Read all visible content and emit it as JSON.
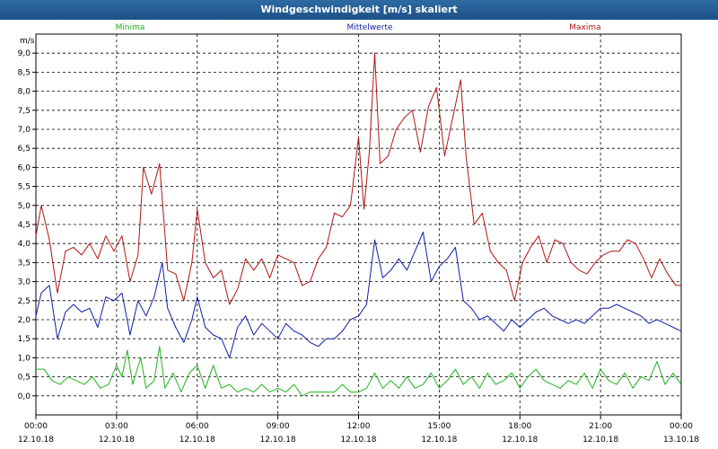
{
  "window": {
    "title": "Windgeschwindigkeit [m/s] skaliert"
  },
  "chart_data": {
    "type": "line",
    "ylabel": "m/s",
    "ylim": [
      -0.5,
      9.5
    ],
    "yticks": [
      "9,0",
      "8,5",
      "8,0",
      "7,5",
      "7,0",
      "6,5",
      "6,0",
      "5,5",
      "5,0",
      "4,5",
      "4,0",
      "3,5",
      "3,0",
      "2,5",
      "2,0",
      "1,5",
      "1,0",
      "0,5",
      "0,0"
    ],
    "ytick_values": [
      9.0,
      8.5,
      8.0,
      7.5,
      7.0,
      6.5,
      6.0,
      5.5,
      5.0,
      4.5,
      4.0,
      3.5,
      3.0,
      2.5,
      2.0,
      1.5,
      1.0,
      0.5,
      0.0
    ],
    "xlim": [
      0,
      24
    ],
    "xticks": [
      {
        "time": "00:00",
        "date": "12.10.18",
        "x": 0
      },
      {
        "time": "03:00",
        "date": "12.10.18",
        "x": 3
      },
      {
        "time": "06:00",
        "date": "12.10.18",
        "x": 6
      },
      {
        "time": "09:00",
        "date": "12.10.18",
        "x": 9
      },
      {
        "time": "12:00",
        "date": "12.10.18",
        "x": 12
      },
      {
        "time": "15:00",
        "date": "12.10.18",
        "x": 15
      },
      {
        "time": "18:00",
        "date": "12.10.18",
        "x": 18
      },
      {
        "time": "21:00",
        "date": "12.10.18",
        "x": 21
      },
      {
        "time": "00:00",
        "date": "13.10.18",
        "x": 24
      }
    ],
    "grid": true,
    "series": [
      {
        "name": "Minima",
        "color": "#1fb31f",
        "legend_position": "left",
        "points": [
          [
            0,
            0.7
          ],
          [
            0.3,
            0.7
          ],
          [
            0.6,
            0.4
          ],
          [
            0.9,
            0.3
          ],
          [
            1.2,
            0.5
          ],
          [
            1.5,
            0.4
          ],
          [
            1.8,
            0.3
          ],
          [
            2.1,
            0.5
          ],
          [
            2.4,
            0.2
          ],
          [
            2.7,
            0.3
          ],
          [
            3,
            0.8
          ],
          [
            3.2,
            0.5
          ],
          [
            3.4,
            1.2
          ],
          [
            3.6,
            0.3
          ],
          [
            3.9,
            1.0
          ],
          [
            4.1,
            0.2
          ],
          [
            4.4,
            0.4
          ],
          [
            4.6,
            1.3
          ],
          [
            4.8,
            0.2
          ],
          [
            5.1,
            0.6
          ],
          [
            5.4,
            0.1
          ],
          [
            5.7,
            0.6
          ],
          [
            6,
            0.8
          ],
          [
            6.3,
            0.2
          ],
          [
            6.6,
            0.8
          ],
          [
            6.9,
            0.2
          ],
          [
            7.2,
            0.3
          ],
          [
            7.5,
            0.1
          ],
          [
            7.8,
            0.2
          ],
          [
            8.1,
            0.1
          ],
          [
            8.4,
            0.3
          ],
          [
            8.7,
            0.1
          ],
          [
            9,
            0.2
          ],
          [
            9.3,
            0.1
          ],
          [
            9.6,
            0.3
          ],
          [
            9.9,
            0.0
          ],
          [
            10.2,
            0.1
          ],
          [
            10.5,
            0.1
          ],
          [
            10.8,
            0.1
          ],
          [
            11.1,
            0.1
          ],
          [
            11.4,
            0.3
          ],
          [
            11.7,
            0.1
          ],
          [
            12,
            0.1
          ],
          [
            12.3,
            0.2
          ],
          [
            12.6,
            0.6
          ],
          [
            12.9,
            0.2
          ],
          [
            13.2,
            0.4
          ],
          [
            13.5,
            0.2
          ],
          [
            13.8,
            0.5
          ],
          [
            14.1,
            0.2
          ],
          [
            14.4,
            0.3
          ],
          [
            14.7,
            0.6
          ],
          [
            15,
            0.2
          ],
          [
            15.3,
            0.4
          ],
          [
            15.6,
            0.7
          ],
          [
            15.9,
            0.3
          ],
          [
            16.2,
            0.5
          ],
          [
            16.5,
            0.2
          ],
          [
            16.8,
            0.6
          ],
          [
            17.1,
            0.3
          ],
          [
            17.4,
            0.4
          ],
          [
            17.7,
            0.6
          ],
          [
            18,
            0.2
          ],
          [
            18.3,
            0.5
          ],
          [
            18.6,
            0.7
          ],
          [
            18.9,
            0.4
          ],
          [
            19.2,
            0.3
          ],
          [
            19.5,
            0.2
          ],
          [
            19.8,
            0.4
          ],
          [
            20.1,
            0.3
          ],
          [
            20.4,
            0.6
          ],
          [
            20.7,
            0.2
          ],
          [
            21,
            0.7
          ],
          [
            21.3,
            0.4
          ],
          [
            21.6,
            0.3
          ],
          [
            21.9,
            0.6
          ],
          [
            22.2,
            0.2
          ],
          [
            22.5,
            0.5
          ],
          [
            22.8,
            0.4
          ],
          [
            23.1,
            0.9
          ],
          [
            23.4,
            0.3
          ],
          [
            23.7,
            0.6
          ],
          [
            24,
            0.3
          ]
        ]
      },
      {
        "name": "Mittelwerte",
        "color": "#0e1ea8",
        "legend_position": "center",
        "points": [
          [
            0,
            2.1
          ],
          [
            0.2,
            2.7
          ],
          [
            0.5,
            2.9
          ],
          [
            0.8,
            1.5
          ],
          [
            1.1,
            2.2
          ],
          [
            1.4,
            2.4
          ],
          [
            1.7,
            2.2
          ],
          [
            2,
            2.3
          ],
          [
            2.3,
            1.8
          ],
          [
            2.6,
            2.6
          ],
          [
            2.9,
            2.5
          ],
          [
            3.2,
            2.7
          ],
          [
            3.5,
            1.6
          ],
          [
            3.8,
            2.5
          ],
          [
            4.1,
            2.1
          ],
          [
            4.4,
            2.6
          ],
          [
            4.7,
            3.5
          ],
          [
            4.9,
            2.3
          ],
          [
            5.2,
            1.8
          ],
          [
            5.5,
            1.4
          ],
          [
            5.8,
            2.0
          ],
          [
            6,
            2.6
          ],
          [
            6.3,
            1.8
          ],
          [
            6.6,
            1.6
          ],
          [
            6.9,
            1.5
          ],
          [
            7.2,
            1.0
          ],
          [
            7.5,
            1.8
          ],
          [
            7.8,
            2.1
          ],
          [
            8.1,
            1.6
          ],
          [
            8.4,
            1.9
          ],
          [
            8.7,
            1.7
          ],
          [
            9,
            1.5
          ],
          [
            9.3,
            1.9
          ],
          [
            9.6,
            1.7
          ],
          [
            9.9,
            1.6
          ],
          [
            10.2,
            1.4
          ],
          [
            10.5,
            1.3
          ],
          [
            10.8,
            1.5
          ],
          [
            11.1,
            1.5
          ],
          [
            11.4,
            1.7
          ],
          [
            11.7,
            2.0
          ],
          [
            12,
            2.1
          ],
          [
            12.3,
            2.4
          ],
          [
            12.6,
            4.1
          ],
          [
            12.9,
            3.1
          ],
          [
            13.2,
            3.3
          ],
          [
            13.5,
            3.6
          ],
          [
            13.8,
            3.3
          ],
          [
            14.1,
            3.8
          ],
          [
            14.4,
            4.3
          ],
          [
            14.7,
            3.0
          ],
          [
            15,
            3.4
          ],
          [
            15.3,
            3.6
          ],
          [
            15.6,
            3.9
          ],
          [
            15.9,
            2.5
          ],
          [
            16.2,
            2.3
          ],
          [
            16.5,
            2.0
          ],
          [
            16.8,
            2.1
          ],
          [
            17.1,
            1.9
          ],
          [
            17.4,
            1.7
          ],
          [
            17.7,
            2.0
          ],
          [
            18,
            1.8
          ],
          [
            18.3,
            2.0
          ],
          [
            18.6,
            2.2
          ],
          [
            18.9,
            2.3
          ],
          [
            19.2,
            2.1
          ],
          [
            19.5,
            2.0
          ],
          [
            19.8,
            1.9
          ],
          [
            20.1,
            2.0
          ],
          [
            20.4,
            1.9
          ],
          [
            20.7,
            2.1
          ],
          [
            21,
            2.3
          ],
          [
            21.3,
            2.3
          ],
          [
            21.6,
            2.4
          ],
          [
            21.9,
            2.3
          ],
          [
            22.2,
            2.2
          ],
          [
            22.5,
            2.1
          ],
          [
            22.8,
            1.9
          ],
          [
            23.1,
            2.0
          ],
          [
            23.4,
            1.9
          ],
          [
            23.7,
            1.8
          ],
          [
            24,
            1.7
          ]
        ]
      },
      {
        "name": "Maxima",
        "color": "#b21414",
        "legend_position": "right",
        "points": [
          [
            0,
            4.2
          ],
          [
            0.2,
            5.0
          ],
          [
            0.5,
            4.1
          ],
          [
            0.8,
            2.7
          ],
          [
            1.1,
            3.8
          ],
          [
            1.4,
            3.9
          ],
          [
            1.7,
            3.7
          ],
          [
            2,
            4.0
          ],
          [
            2.3,
            3.6
          ],
          [
            2.6,
            4.2
          ],
          [
            2.9,
            3.8
          ],
          [
            3.2,
            4.2
          ],
          [
            3.5,
            3.0
          ],
          [
            3.8,
            3.7
          ],
          [
            4,
            6.0
          ],
          [
            4.3,
            5.3
          ],
          [
            4.6,
            6.1
          ],
          [
            4.9,
            3.3
          ],
          [
            5.2,
            3.2
          ],
          [
            5.5,
            2.5
          ],
          [
            5.8,
            3.5
          ],
          [
            6,
            4.9
          ],
          [
            6.3,
            3.5
          ],
          [
            6.6,
            3.1
          ],
          [
            6.9,
            3.3
          ],
          [
            7.2,
            2.4
          ],
          [
            7.5,
            2.8
          ],
          [
            7.8,
            3.6
          ],
          [
            8.1,
            3.3
          ],
          [
            8.4,
            3.6
          ],
          [
            8.7,
            3.1
          ],
          [
            9,
            3.7
          ],
          [
            9.3,
            3.6
          ],
          [
            9.6,
            3.5
          ],
          [
            9.9,
            2.9
          ],
          [
            10.2,
            3.0
          ],
          [
            10.5,
            3.6
          ],
          [
            10.8,
            3.9
          ],
          [
            11.1,
            4.8
          ],
          [
            11.4,
            4.7
          ],
          [
            11.7,
            5.0
          ],
          [
            12,
            6.8
          ],
          [
            12.2,
            4.9
          ],
          [
            12.4,
            6.4
          ],
          [
            12.6,
            9.0
          ],
          [
            12.8,
            6.1
          ],
          [
            13.1,
            6.3
          ],
          [
            13.4,
            7.0
          ],
          [
            13.7,
            7.3
          ],
          [
            14,
            7.5
          ],
          [
            14.3,
            6.4
          ],
          [
            14.6,
            7.6
          ],
          [
            14.9,
            8.1
          ],
          [
            15.2,
            6.3
          ],
          [
            15.5,
            7.3
          ],
          [
            15.8,
            8.3
          ],
          [
            16,
            6.3
          ],
          [
            16.3,
            4.5
          ],
          [
            16.6,
            4.8
          ],
          [
            16.9,
            3.8
          ],
          [
            17.2,
            3.5
          ],
          [
            17.5,
            3.3
          ],
          [
            17.8,
            2.5
          ],
          [
            18.1,
            3.5
          ],
          [
            18.4,
            3.9
          ],
          [
            18.7,
            4.2
          ],
          [
            19,
            3.5
          ],
          [
            19.3,
            4.1
          ],
          [
            19.6,
            4.0
          ],
          [
            19.9,
            3.5
          ],
          [
            20.2,
            3.3
          ],
          [
            20.5,
            3.2
          ],
          [
            20.8,
            3.5
          ],
          [
            21.1,
            3.7
          ],
          [
            21.4,
            3.8
          ],
          [
            21.7,
            3.8
          ],
          [
            22,
            4.1
          ],
          [
            22.3,
            4.0
          ],
          [
            22.6,
            3.6
          ],
          [
            22.9,
            3.1
          ],
          [
            23.2,
            3.6
          ],
          [
            23.5,
            3.2
          ],
          [
            23.8,
            2.9
          ],
          [
            24,
            2.9
          ]
        ]
      }
    ]
  }
}
